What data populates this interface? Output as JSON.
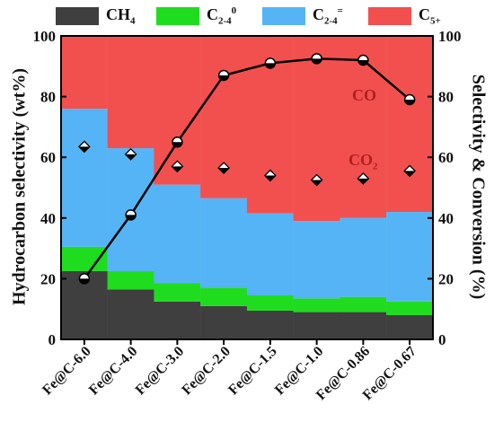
{
  "colors": {
    "ch4": "#3f3f3f",
    "c24_paraffin": "#1fdc1f",
    "c24_olefin": "#55b4f5",
    "c5plus": "#f2504f",
    "line": "#000000"
  },
  "legend": {
    "ch4": {
      "base": "CH",
      "sub": "4",
      "sup": ""
    },
    "c24_paraffin": {
      "base": "C",
      "sub": "2-4",
      "sup": "0"
    },
    "c24_olefin": {
      "base": "C",
      "sub": "2-4",
      "sup": "="
    },
    "c5plus": {
      "base": "C",
      "sub": "5+",
      "sup": ""
    }
  },
  "annotations": {
    "co": {
      "base": "CO",
      "sub": ""
    },
    "co2": {
      "base": "CO",
      "sub": "2"
    }
  },
  "chart_data": {
    "type": "bar",
    "stacked": true,
    "ylabel_left": "Hydrocarbon selectivity (wt%)",
    "ylabel_right": "Selectivity & Conversion (%)",
    "ylim": [
      0,
      100
    ],
    "yticks": [
      0,
      20,
      40,
      60,
      80,
      100
    ],
    "categories": [
      "Fe@C-6.0",
      "Fe@C-4.0",
      "Fe@C-3.0",
      "Fe@C-2.0",
      "Fe@C-1.5",
      "Fe@C-1.0",
      "Fe@C-0.86",
      "Fe@C-0.67"
    ],
    "series": [
      {
        "name": "CH4",
        "key": "ch4",
        "values": [
          22.5,
          16.5,
          12.5,
          11.0,
          9.5,
          9.0,
          9.0,
          8.0
        ]
      },
      {
        "name": "C2-4 0",
        "key": "c24_paraffin",
        "values": [
          8.0,
          6.0,
          6.0,
          6.0,
          5.0,
          4.5,
          5.0,
          4.5
        ]
      },
      {
        "name": "C2-4 =",
        "key": "c24_olefin",
        "values": [
          45.5,
          40.5,
          32.5,
          29.5,
          27.0,
          25.5,
          26.0,
          29.5
        ]
      },
      {
        "name": "C5+",
        "key": "c5plus",
        "values": [
          24.0,
          37.0,
          49.0,
          53.5,
          58.5,
          61.0,
          60.0,
          58.0
        ]
      }
    ],
    "lines": [
      {
        "name": "CO",
        "marker": "circle",
        "values": [
          20,
          41,
          65,
          87,
          91,
          92.5,
          92,
          79
        ]
      },
      {
        "name": "CO2",
        "marker": "diamond",
        "values": [
          63.5,
          61,
          57,
          56.5,
          54,
          52.5,
          53,
          55.5
        ]
      }
    ]
  }
}
